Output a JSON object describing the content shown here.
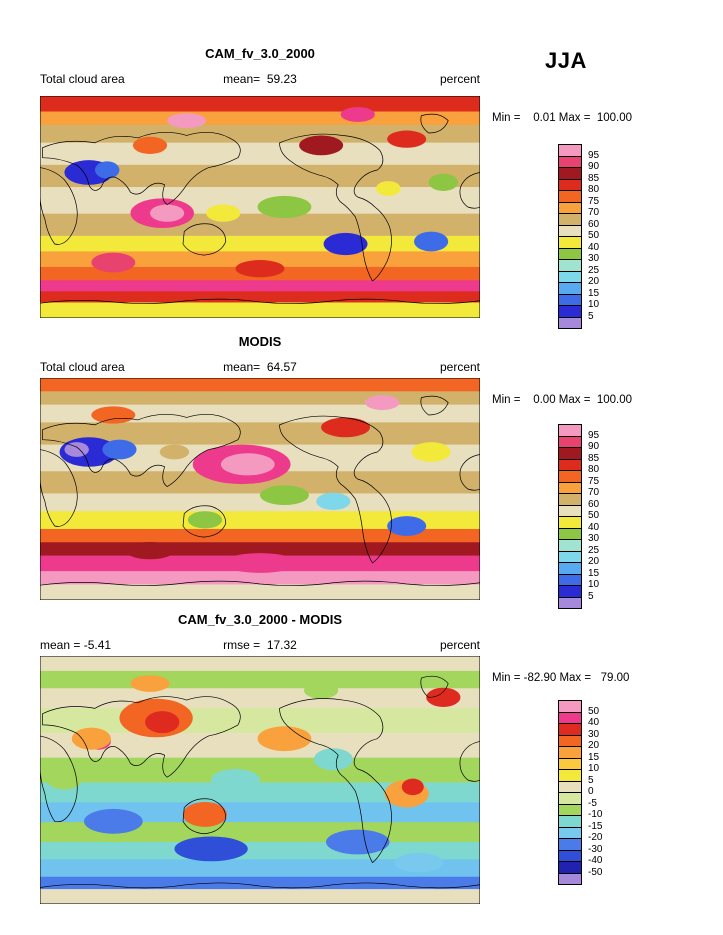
{
  "page": {
    "season_label": "JJA"
  },
  "chart_data": [
    {
      "type": "heatmap",
      "title": "CAM_fv_3.0_2000",
      "left_label": "Total cloud area",
      "center_label": "mean=  59.23",
      "units": "percent",
      "minmax_text": "Min =    0.01 Max =  100.00",
      "stats": {
        "mean": 59.23,
        "min": 0.01,
        "max": 100.0
      },
      "colorbar": {
        "tick_labels": [
          "95",
          "90",
          "85",
          "80",
          "75",
          "70",
          "60",
          "50",
          "40",
          "30",
          "25",
          "20",
          "15",
          "10",
          "5"
        ],
        "cell_colors": [
          "#F49AC1",
          "#E8426F",
          "#A01820",
          "#DD2C1E",
          "#F26522",
          "#F9A13C",
          "#D2B26B",
          "#E8DFBE",
          "#F2E93B",
          "#8CC642",
          "#9FE3D0",
          "#7FD8EA",
          "#58AAF0",
          "#3E6BE8",
          "#2B2BD5",
          "#A789DC"
        ]
      },
      "map": {
        "bands": [
          [
            0.07,
            "#DD2C1E"
          ],
          [
            0.06,
            "#F9A13C"
          ],
          [
            0.08,
            "#D2B26B"
          ],
          [
            0.1,
            "#E8DFBE"
          ],
          [
            0.1,
            "#D2B26B"
          ],
          [
            0.12,
            "#E8DFBE"
          ],
          [
            0.1,
            "#D2B26B"
          ],
          [
            0.07,
            "#F2E93B"
          ],
          [
            0.07,
            "#F9A13C"
          ],
          [
            0.06,
            "#F26522"
          ],
          [
            0.05,
            "#EE3A8C"
          ],
          [
            0.05,
            "#DD2C1E"
          ],
          [
            0.07,
            "#F2E93B"
          ]
        ],
        "blobs": [
          [
            100,
            95,
            26,
            12,
            "#EE3A8C"
          ],
          [
            104,
            95,
            14,
            7,
            "#F49AC1"
          ],
          [
            40,
            62,
            20,
            10,
            "#2B2BD5"
          ],
          [
            55,
            60,
            10,
            7,
            "#3E6BE8"
          ],
          [
            250,
            120,
            18,
            9,
            "#2B2BD5"
          ],
          [
            320,
            118,
            14,
            8,
            "#3E6BE8"
          ],
          [
            200,
            90,
            22,
            9,
            "#8CC642"
          ],
          [
            150,
            95,
            14,
            7,
            "#F2E93B"
          ],
          [
            230,
            40,
            18,
            8,
            "#A01820"
          ],
          [
            300,
            35,
            16,
            7,
            "#DD2C1E"
          ],
          [
            120,
            20,
            16,
            6,
            "#F49AC1"
          ],
          [
            260,
            15,
            14,
            6,
            "#EE3A8C"
          ],
          [
            60,
            135,
            18,
            8,
            "#E8426F"
          ],
          [
            180,
            140,
            20,
            7,
            "#DD2C1E"
          ],
          [
            90,
            40,
            14,
            7,
            "#F26522"
          ],
          [
            330,
            70,
            12,
            7,
            "#8CC642"
          ],
          [
            285,
            75,
            10,
            6,
            "#F2E93B"
          ]
        ]
      }
    },
    {
      "type": "heatmap",
      "title": "MODIS",
      "left_label": "Total cloud area",
      "center_label": "mean=  64.57",
      "units": "percent",
      "minmax_text": "Min =    0.00 Max =  100.00",
      "stats": {
        "mean": 64.57,
        "min": 0.0,
        "max": 100.0
      },
      "colorbar": {
        "tick_labels": [
          "95",
          "90",
          "85",
          "80",
          "75",
          "70",
          "60",
          "50",
          "40",
          "30",
          "25",
          "20",
          "15",
          "10",
          "5"
        ],
        "cell_colors": [
          "#F49AC1",
          "#E8426F",
          "#A01820",
          "#DD2C1E",
          "#F26522",
          "#F9A13C",
          "#D2B26B",
          "#E8DFBE",
          "#F2E93B",
          "#8CC642",
          "#9FE3D0",
          "#7FD8EA",
          "#58AAF0",
          "#3E6BE8",
          "#2B2BD5",
          "#A789DC"
        ]
      },
      "map": {
        "bands": [
          [
            0.06,
            "#F26522"
          ],
          [
            0.06,
            "#D2B26B"
          ],
          [
            0.08,
            "#E8DFBE"
          ],
          [
            0.1,
            "#D2B26B"
          ],
          [
            0.12,
            "#E8DFBE"
          ],
          [
            0.1,
            "#D2B26B"
          ],
          [
            0.08,
            "#E8DFBE"
          ],
          [
            0.08,
            "#F2E93B"
          ],
          [
            0.06,
            "#F26522"
          ],
          [
            0.06,
            "#A01820"
          ],
          [
            0.07,
            "#EE3A8C"
          ],
          [
            0.06,
            "#F49AC1"
          ],
          [
            0.07,
            "#E8DFBE"
          ]
        ],
        "blobs": [
          [
            165,
            70,
            40,
            16,
            "#EE3A8C"
          ],
          [
            170,
            70,
            22,
            9,
            "#F49AC1"
          ],
          [
            40,
            60,
            24,
            12,
            "#2B2BD5"
          ],
          [
            65,
            58,
            14,
            8,
            "#3E6BE8"
          ],
          [
            30,
            58,
            10,
            6,
            "#A789DC"
          ],
          [
            200,
            95,
            20,
            8,
            "#8CC642"
          ],
          [
            240,
            100,
            14,
            7,
            "#7FD8EA"
          ],
          [
            135,
            115,
            14,
            7,
            "#8CC642"
          ],
          [
            320,
            60,
            16,
            8,
            "#F2E93B"
          ],
          [
            250,
            40,
            20,
            8,
            "#DD2C1E"
          ],
          [
            60,
            30,
            18,
            7,
            "#F26522"
          ],
          [
            300,
            120,
            16,
            8,
            "#3E6BE8"
          ],
          [
            90,
            140,
            20,
            7,
            "#A01820"
          ],
          [
            180,
            150,
            30,
            8,
            "#EE3A8C"
          ],
          [
            280,
            20,
            14,
            6,
            "#F49AC1"
          ],
          [
            110,
            60,
            12,
            6,
            "#D2B26B"
          ]
        ]
      }
    },
    {
      "type": "heatmap",
      "title": "CAM_fv_3.0_2000 - MODIS",
      "left_label": "mean = -5.41",
      "center_label": "rmse =  17.32",
      "units": "percent",
      "minmax_text": "Min = -82.90 Max =   79.00",
      "stats": {
        "mean": -5.41,
        "rmse": 17.32,
        "min": -82.9,
        "max": 79.0
      },
      "colorbar": {
        "tick_labels": [
          "50",
          "40",
          "30",
          "20",
          "15",
          "10",
          "5",
          "0",
          "-5",
          "-10",
          "-15",
          "-20",
          "-30",
          "-40",
          "-50"
        ],
        "cell_colors": [
          "#F49AC1",
          "#EE3A8C",
          "#DF2A20",
          "#F26522",
          "#F9A13C",
          "#FBC93D",
          "#F2E93B",
          "#E8DFBE",
          "#D6E8A0",
          "#A3D65C",
          "#7FD8D0",
          "#79C9EE",
          "#4B7BE8",
          "#2F4FD8",
          "#2222B0",
          "#A789DC"
        ]
      },
      "map": {
        "bands": [
          [
            0.06,
            "#E8DFBE"
          ],
          [
            0.07,
            "#A3D65C"
          ],
          [
            0.08,
            "#E8DFBE"
          ],
          [
            0.1,
            "#D6E8A0"
          ],
          [
            0.1,
            "#E8DFBE"
          ],
          [
            0.1,
            "#A3D65C"
          ],
          [
            0.08,
            "#7FD8D0"
          ],
          [
            0.08,
            "#6FC3EE"
          ],
          [
            0.08,
            "#A3D65C"
          ],
          [
            0.07,
            "#7FD8D0"
          ],
          [
            0.07,
            "#6FC3EE"
          ],
          [
            0.05,
            "#4B7BE8"
          ],
          [
            0.06,
            "#E8DFBE"
          ]
        ],
        "blobs": [
          [
            95,
            45,
            30,
            14,
            "#F26522"
          ],
          [
            100,
            48,
            14,
            8,
            "#DF2A20"
          ],
          [
            48,
            62,
            10,
            6,
            "#EE3A8C"
          ],
          [
            42,
            60,
            16,
            8,
            "#F9A13C"
          ],
          [
            135,
            115,
            18,
            9,
            "#F26522"
          ],
          [
            300,
            100,
            18,
            10,
            "#F9A13C"
          ],
          [
            305,
            95,
            9,
            6,
            "#DF2A20"
          ],
          [
            330,
            30,
            14,
            7,
            "#DF2A20"
          ],
          [
            200,
            60,
            22,
            9,
            "#F9A13C"
          ],
          [
            240,
            75,
            16,
            8,
            "#7FD8D0"
          ],
          [
            160,
            90,
            20,
            8,
            "#7FD8D0"
          ],
          [
            60,
            120,
            24,
            9,
            "#4B7BE8"
          ],
          [
            140,
            140,
            30,
            9,
            "#2F4FD8"
          ],
          [
            260,
            135,
            26,
            9,
            "#4B7BE8"
          ],
          [
            20,
            90,
            14,
            7,
            "#A3D65C"
          ],
          [
            310,
            150,
            20,
            7,
            "#79C9EE"
          ],
          [
            90,
            20,
            16,
            6,
            "#F9A13C"
          ],
          [
            230,
            25,
            14,
            6,
            "#A3D65C"
          ]
        ]
      }
    }
  ]
}
